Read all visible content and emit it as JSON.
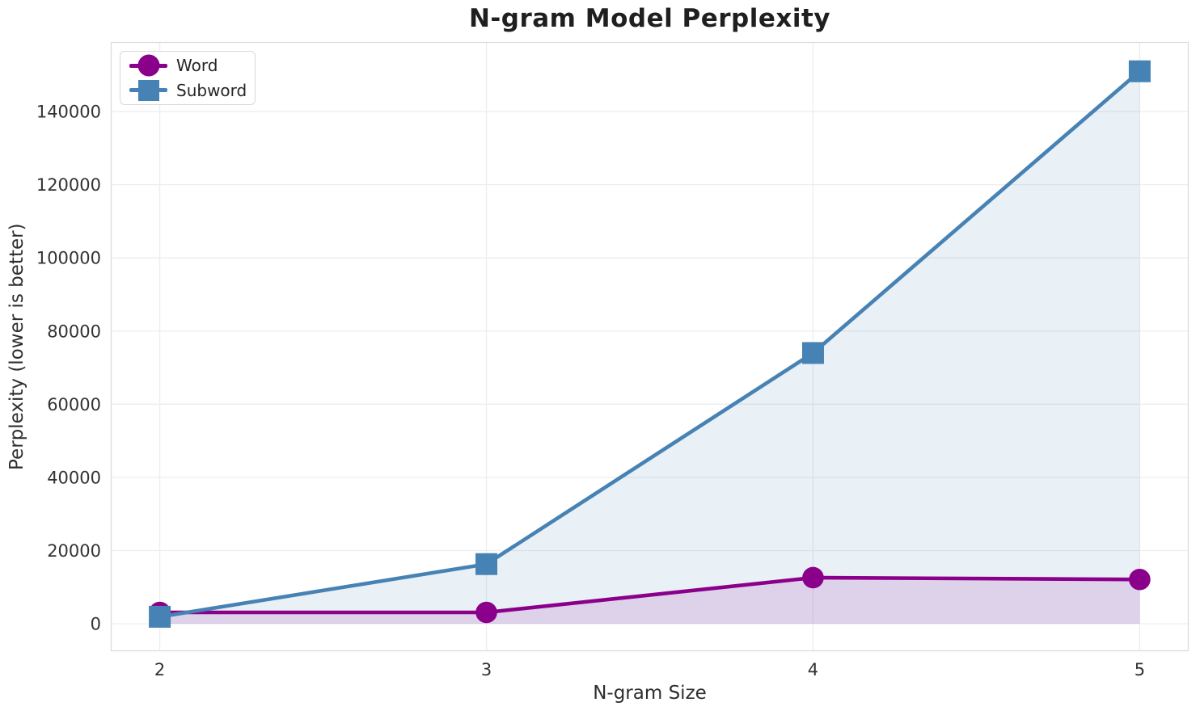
{
  "chart_data": {
    "type": "line",
    "title": "N-gram Model Perplexity",
    "xlabel": "N-gram Size",
    "ylabel": "Perplexity (lower is better)",
    "x": [
      2,
      3,
      4,
      5
    ],
    "series": [
      {
        "name": "Word",
        "color": "#8B008B",
        "marker": "circle",
        "values": [
          3100,
          3100,
          12600,
          12100
        ]
      },
      {
        "name": "Subword",
        "color": "#4682B4",
        "marker": "square",
        "values": [
          1900,
          16300,
          74000,
          151000
        ]
      }
    ],
    "xticks": {
      "values": [
        2,
        3,
        4,
        5
      ],
      "labels": [
        "2",
        "3",
        "4",
        "5"
      ]
    },
    "yticks": {
      "values": [
        0,
        20000,
        40000,
        60000,
        80000,
        100000,
        120000,
        140000
      ],
      "labels": [
        "0",
        "20000",
        "40000",
        "60000",
        "80000",
        "100000",
        "120000",
        "140000"
      ]
    },
    "xlim": [
      1.85,
      5.15
    ],
    "ylim": [
      -7500,
      159000
    ],
    "grid": true,
    "legend_position": "upper left",
    "fill_alpha": 0.12,
    "fill_baseline": 0
  },
  "colors": {
    "background": "#ffffff",
    "grid": "#ededf0",
    "spine": "#dcdcdc",
    "tick_label": "#333333",
    "title": "#1f1f1f",
    "axis_label": "#2e2e2e"
  }
}
